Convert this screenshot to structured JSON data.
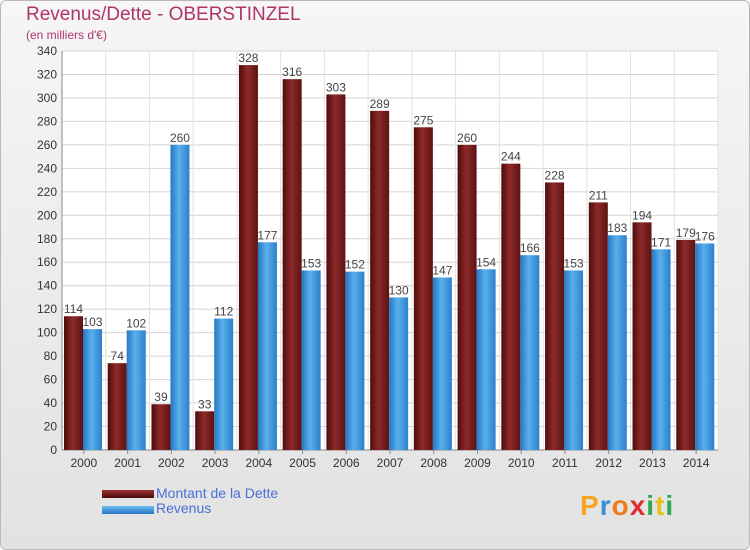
{
  "title": "Revenus/Dette - OBERSTINZEL",
  "subtitle": "(en milliers d'€)",
  "logo": {
    "letters": [
      "P",
      "r",
      "o",
      "x",
      "i",
      "t",
      "i"
    ],
    "colors": [
      "#f5a623",
      "#3b8fd8",
      "#ef7c1a",
      "#e02c2c",
      "#2fa84f",
      "#e8c21b",
      "#2fa84f"
    ]
  },
  "chart_data": {
    "type": "bar",
    "categories": [
      "2000",
      "2001",
      "2002",
      "2003",
      "2004",
      "2005",
      "2006",
      "2007",
      "2008",
      "2009",
      "2010",
      "2011",
      "2012",
      "2013",
      "2014"
    ],
    "series": [
      {
        "name": "Montant de la Dette",
        "color": "#7a1c1c",
        "values": [
          114,
          74,
          39,
          33,
          328,
          316,
          303,
          289,
          275,
          260,
          244,
          228,
          211,
          194,
          179
        ]
      },
      {
        "name": "Revenus",
        "color": "#3c95dc",
        "values": [
          103,
          102,
          260,
          112,
          177,
          153,
          152,
          130,
          147,
          154,
          166,
          153,
          183,
          171,
          176
        ]
      }
    ],
    "ylim": [
      0,
      340
    ],
    "yticks": [
      0,
      20,
      40,
      60,
      80,
      100,
      120,
      140,
      160,
      180,
      200,
      220,
      240,
      260,
      280,
      300,
      320,
      340
    ],
    "grid": true,
    "legend_position": "bottom-left"
  }
}
